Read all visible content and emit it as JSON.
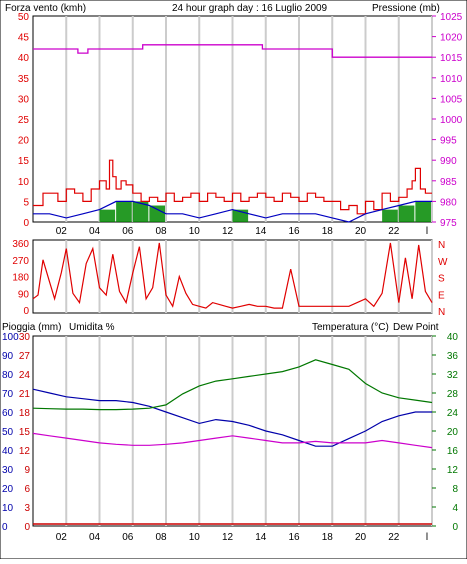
{
  "colors": {
    "wind": "#e00000",
    "pressure": "#cc00cc",
    "gust_fill": "#008800",
    "avg_wind": "#0000c0",
    "rain": "#cc0000",
    "humidity": "#0000aa",
    "temperature": "#007700",
    "dewpoint": "#cc00cc",
    "grid": "#cccccc",
    "frame": "#000000"
  },
  "header": {
    "title": "24 hour graph day : 16 Luglio 2009",
    "left_label": "Forza vento (kmh)",
    "right_label": "Pressione (mb)"
  },
  "panel3_labels": {
    "rain": "Pioggia (mm)",
    "humidity": "Umidita %",
    "temperature": "Temperatura (°C)",
    "dewpoint": "Dew Point"
  },
  "hour_labels": [
    "02",
    "04",
    "06",
    "08",
    "10",
    "12",
    "14",
    "16",
    "18",
    "20",
    "22",
    "l"
  ],
  "chart_data": [
    {
      "type": "line",
      "title": "24 hour graph day : 16 Luglio 2009",
      "y_left": {
        "label": "Forza vento (kmh)",
        "ticks": [
          0,
          5,
          10,
          15,
          20,
          25,
          30,
          35,
          40,
          45,
          50
        ],
        "range": [
          0,
          50
        ]
      },
      "y_right": {
        "label": "Pressione (mb)",
        "ticks": [
          975,
          980,
          985,
          990,
          995,
          1000,
          1005,
          1010,
          1015,
          1020,
          1025
        ],
        "range": [
          975,
          1025
        ]
      },
      "x_ticks": [
        "02",
        "04",
        "06",
        "08",
        "10",
        "12",
        "14",
        "16",
        "18",
        "20",
        "22",
        "l"
      ],
      "series": [
        {
          "name": "Pressione (mb)",
          "axis": "right",
          "x": [
            0,
            2.7,
            2.7,
            3.3,
            3.3,
            6.6,
            6.6,
            13.8,
            13.8,
            18.0,
            18.0,
            24
          ],
          "values": [
            1017,
            1017,
            1016,
            1016,
            1017,
            1017,
            1018,
            1018,
            1017,
            1017,
            1015,
            1015
          ]
        },
        {
          "name": "Forza vento (kmh)",
          "axis": "left",
          "x": [
            0,
            0.3,
            0.6,
            1,
            1.5,
            2,
            2.5,
            3,
            3.5,
            4,
            4.4,
            4.6,
            4.8,
            5,
            5.3,
            5.6,
            6,
            6.5,
            7,
            7.5,
            8,
            8.5,
            9,
            9.5,
            10,
            10.5,
            11,
            11.5,
            12,
            12.5,
            13,
            13.5,
            14,
            14.5,
            15,
            15.5,
            16,
            16.5,
            17,
            17.5,
            18,
            18.5,
            19,
            19.5,
            20,
            20.5,
            21,
            21.5,
            22,
            22.5,
            22.8,
            23,
            23.3,
            23.6,
            24
          ],
          "values": [
            4,
            4,
            7,
            7,
            5,
            8,
            7,
            5,
            8,
            10,
            8,
            15,
            11,
            8,
            10,
            9,
            7,
            5,
            6,
            5,
            7,
            5,
            6,
            7,
            5,
            7,
            6,
            5,
            7,
            5,
            6,
            7,
            6,
            5,
            7,
            6,
            5,
            7,
            6,
            5,
            5,
            3,
            4,
            2,
            5,
            3,
            7,
            5,
            6,
            8,
            10,
            13,
            8,
            7,
            7
          ]
        },
        {
          "name": "avg",
          "axis": "left",
          "x": [
            0,
            1,
            2,
            3,
            4,
            5,
            6,
            7,
            8,
            9,
            10,
            11,
            12,
            13,
            14,
            15,
            16,
            17,
            18,
            19,
            20,
            21,
            22,
            23,
            24
          ],
          "values": [
            2,
            2,
            1,
            2,
            3,
            5,
            5,
            4,
            2,
            2,
            1,
            2,
            3,
            2,
            1,
            2,
            2,
            2,
            1,
            0,
            2,
            3,
            4,
            5,
            5
          ]
        }
      ]
    },
    {
      "type": "scatter",
      "y_left": {
        "ticks": [
          0,
          90,
          180,
          270,
          360
        ],
        "range": [
          0,
          360
        ]
      },
      "y_right": {
        "ticks": [
          "N",
          "E",
          "S",
          "W",
          "N"
        ]
      },
      "series": [
        {
          "name": "direction",
          "x": [
            0,
            0.3,
            0.6,
            1,
            1.3,
            1.7,
            2,
            2.4,
            2.8,
            3.2,
            3.6,
            4,
            4.4,
            4.8,
            5.2,
            5.6,
            6,
            6.4,
            6.8,
            7.2,
            7.6,
            8,
            8.4,
            8.8,
            9.2,
            9.6,
            10,
            10.4,
            10.8,
            11.2,
            11.6,
            12,
            12.5,
            13,
            13.5,
            14,
            14.5,
            15,
            15.5,
            16,
            17,
            18,
            19,
            20,
            20.5,
            21,
            21.5,
            22,
            22.4,
            22.8,
            23.2,
            23.6,
            24
          ],
          "values": [
            60,
            80,
            270,
            150,
            60,
            200,
            330,
            90,
            40,
            250,
            330,
            120,
            80,
            300,
            100,
            40,
            200,
            340,
            60,
            120,
            360,
            80,
            20,
            180,
            90,
            30,
            20,
            10,
            40,
            30,
            20,
            10,
            20,
            30,
            20,
            20,
            10,
            10,
            220,
            20,
            20,
            20,
            20,
            60,
            20,
            90,
            360,
            40,
            280,
            60,
            350,
            100,
            40
          ]
        }
      ]
    },
    {
      "type": "line",
      "y_left_rain": {
        "label": "Pioggia (mm)",
        "ticks": [
          0,
          3,
          6,
          9,
          12,
          15,
          18,
          21,
          24,
          27,
          30
        ]
      },
      "y_left_humidity": {
        "label": "Umidita %",
        "ticks": [
          0,
          10,
          20,
          30,
          40,
          50,
          60,
          70,
          80,
          90,
          100
        ]
      },
      "y_right": {
        "label": "Temperatura (°C)",
        "ticks": [
          0,
          4,
          8,
          12,
          16,
          20,
          24,
          28,
          32,
          36,
          40
        ],
        "range": [
          0,
          40
        ]
      },
      "x_ticks": [
        "02",
        "04",
        "06",
        "08",
        "10",
        "12",
        "14",
        "16",
        "18",
        "20",
        "22",
        "l"
      ],
      "series": [
        {
          "name": "Umidita %",
          "axis": "humidity",
          "x": [
            0,
            1,
            2,
            3,
            4,
            5,
            6,
            7,
            8,
            9,
            10,
            11,
            12,
            13,
            14,
            15,
            16,
            17,
            18,
            19,
            20,
            21,
            22,
            23,
            24
          ],
          "values": [
            72,
            70,
            68,
            67,
            66,
            66,
            65,
            63,
            60,
            57,
            54,
            56,
            55,
            53,
            50,
            48,
            45,
            42,
            42,
            46,
            50,
            55,
            58,
            60,
            60
          ]
        },
        {
          "name": "Temperatura (°C)",
          "axis": "right",
          "x": [
            0,
            1,
            2,
            3,
            4,
            5,
            6,
            7,
            8,
            9,
            10,
            11,
            12,
            13,
            14,
            15,
            16,
            17,
            18,
            19,
            20,
            21,
            22,
            23,
            24
          ],
          "values": [
            24.8,
            24.7,
            24.6,
            24.6,
            24.5,
            24.5,
            24.6,
            24.8,
            25.5,
            27.8,
            29.5,
            30.5,
            31,
            31.5,
            32,
            32.5,
            33.5,
            35,
            34,
            33,
            30,
            28,
            27,
            26.5,
            26
          ]
        },
        {
          "name": "Dew Point",
          "axis": "right",
          "x": [
            0,
            1,
            2,
            3,
            4,
            5,
            6,
            7,
            8,
            9,
            10,
            11,
            12,
            13,
            14,
            15,
            16,
            17,
            18,
            19,
            20,
            21,
            22,
            23,
            24
          ],
          "values": [
            19.5,
            19,
            18.5,
            18,
            17.5,
            17.2,
            17,
            17,
            17.2,
            17.5,
            18,
            18.5,
            19,
            18.5,
            18,
            17.5,
            17.5,
            17.8,
            17.5,
            17.5,
            17.5,
            18,
            17.5,
            17,
            16.5
          ]
        },
        {
          "name": "Pioggia (mm)",
          "axis": "rain",
          "x": [
            0,
            24
          ],
          "values": [
            0,
            0
          ]
        }
      ]
    }
  ]
}
